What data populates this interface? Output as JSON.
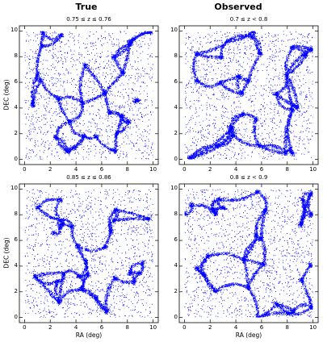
{
  "column_titles": [
    "True",
    "Observed"
  ],
  "point_color": "#0000ff",
  "chart_data": [
    {
      "type": "scatter",
      "title": "0.75 ≤ z ≤ 0.76",
      "column": "True",
      "xlabel": "",
      "ylabel": "DEC (deg)",
      "xlim": [
        -0.4,
        10.4
      ],
      "ylim": [
        -0.4,
        10.4
      ],
      "xticks": [
        0,
        2,
        4,
        6,
        8,
        10
      ],
      "yticks": [
        0,
        2,
        4,
        6,
        8,
        10
      ],
      "grid": false,
      "marker_color": "#0000ff",
      "points_shown": "dense filamentary cosmic-web galaxy distribution"
    },
    {
      "type": "scatter",
      "title": "0.7 ≤ z < 0.8",
      "column": "Observed",
      "xlabel": "",
      "ylabel": "",
      "xlim": [
        -0.4,
        10.4
      ],
      "ylim": [
        -0.4,
        10.4
      ],
      "xticks": [
        0,
        2,
        4,
        6,
        8,
        10
      ],
      "yticks": [
        0,
        2,
        4,
        6,
        8,
        10
      ],
      "grid": false,
      "marker_color": "#0000ff",
      "points_shown": "dense filamentary cosmic-web galaxy distribution"
    },
    {
      "type": "scatter",
      "title": "0.85 ≤ z ≤ 0.86",
      "column": "True",
      "xlabel": "RA (deg)",
      "ylabel": "DEC (deg)",
      "xlim": [
        -0.4,
        10.4
      ],
      "ylim": [
        -0.4,
        10.4
      ],
      "xticks": [
        0,
        2,
        4,
        6,
        8,
        10
      ],
      "yticks": [
        0,
        2,
        4,
        6,
        8,
        10
      ],
      "grid": false,
      "marker_color": "#0000ff",
      "points_shown": "dense filamentary cosmic-web galaxy distribution"
    },
    {
      "type": "scatter",
      "title": "0.8 ≤ z < 0.9",
      "column": "Observed",
      "xlabel": "RA (deg)",
      "ylabel": "",
      "xlim": [
        -0.4,
        10.4
      ],
      "ylim": [
        -0.4,
        10.4
      ],
      "xticks": [
        0,
        2,
        4,
        6,
        8,
        10
      ],
      "yticks": [
        0,
        2,
        4,
        6,
        8,
        10
      ],
      "grid": false,
      "marker_color": "#0000ff",
      "points_shown": "dense filamentary cosmic-web galaxy distribution"
    }
  ]
}
